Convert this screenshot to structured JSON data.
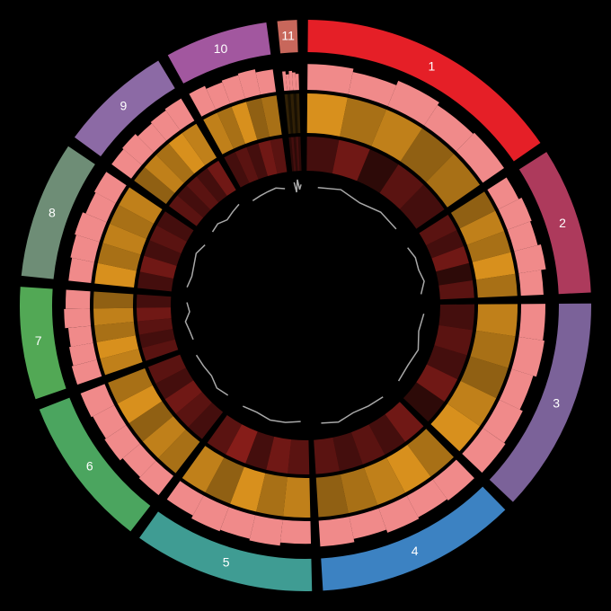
{
  "chart_data": {
    "type": "circos",
    "categories": [
      "1",
      "2",
      "3",
      "4",
      "5",
      "6",
      "7",
      "8",
      "9",
      "10",
      "11"
    ],
    "values": [
      55,
      30,
      44,
      41,
      37,
      31,
      23,
      28,
      23,
      21,
      4
    ],
    "colors": [
      "#e51f27",
      "#ad3a5c",
      "#7b6299",
      "#3c82c2",
      "#3f9c93",
      "#4ba55f",
      "#52a855",
      "#6e8d76",
      "#8c6aa5",
      "#a2579f",
      "#c8675b"
    ],
    "tracks": [
      {
        "type": "histogram",
        "color": "#f08a8a",
        "ylim": [
          0,
          1
        ],
        "values": [
          [
            0.8,
            0.7,
            0.85,
            0.75,
            0.8
          ],
          [
            0.7,
            0.8,
            0.75,
            0.85,
            0.7
          ],
          [
            0.75,
            0.8,
            0.7,
            0.8,
            0.85
          ],
          [
            0.8,
            0.75,
            0.8,
            0.7,
            0.8
          ],
          [
            0.7,
            0.8,
            0.75,
            0.8,
            0.7
          ],
          [
            0.75,
            0.7,
            0.8,
            0.75,
            0.8
          ],
          [
            0.8,
            0.75,
            0.7,
            0.8,
            0.75
          ],
          [
            0.7,
            0.75,
            0.8,
            0.7,
            0.75
          ],
          [
            0.75,
            0.8,
            0.7,
            0.75,
            0.8
          ],
          [
            0.8,
            0.7,
            0.75,
            0.8,
            0.7
          ],
          [
            0.6,
            0.5,
            0.6,
            0.55,
            0.5
          ]
        ]
      },
      {
        "type": "heatmap",
        "color": "#f0a020",
        "ylim": [
          0,
          1
        ],
        "values": [
          [
            0.9,
            0.7,
            0.8,
            0.6,
            0.7
          ],
          [
            0.6,
            0.8,
            0.7,
            0.9,
            0.7
          ],
          [
            0.8,
            0.7,
            0.6,
            0.8,
            0.9
          ],
          [
            0.7,
            0.9,
            0.8,
            0.7,
            0.6
          ],
          [
            0.8,
            0.7,
            0.9,
            0.6,
            0.8
          ],
          [
            0.7,
            0.8,
            0.6,
            0.9,
            0.7
          ],
          [
            0.8,
            0.9,
            0.7,
            0.8,
            0.6
          ],
          [
            0.9,
            0.7,
            0.8,
            0.7,
            0.8
          ],
          [
            0.6,
            0.8,
            0.7,
            0.9,
            0.8
          ],
          [
            0.8,
            0.7,
            0.9,
            0.6,
            0.7
          ],
          [
            0.2,
            0.1,
            0.2,
            0.1,
            0.2
          ]
        ]
      },
      {
        "type": "heatmap",
        "color": "#e0302a",
        "ylim": [
          0,
          1
        ],
        "values": [
          [
            0.3,
            0.5,
            0.2,
            0.4,
            0.3
          ],
          [
            0.4,
            0.3,
            0.5,
            0.2,
            0.4
          ],
          [
            0.3,
            0.4,
            0.3,
            0.5,
            0.2
          ],
          [
            0.5,
            0.3,
            0.4,
            0.3,
            0.4
          ],
          [
            0.4,
            0.5,
            0.3,
            0.6,
            0.4
          ],
          [
            0.3,
            0.4,
            0.5,
            0.3,
            0.4
          ],
          [
            0.4,
            0.3,
            0.4,
            0.5,
            0.3
          ],
          [
            0.3,
            0.5,
            0.3,
            0.4,
            0.3
          ],
          [
            0.4,
            0.3,
            0.4,
            0.3,
            0.5
          ],
          [
            0.3,
            0.4,
            0.3,
            0.5,
            0.4
          ],
          [
            0.2,
            0.3,
            0.2,
            0.3,
            0.2
          ]
        ]
      },
      {
        "type": "line",
        "color": "#a8a8a8",
        "ylim": [
          0,
          1
        ],
        "values": [
          [
            0.5,
            0.6,
            0.4,
            0.55,
            0.5
          ],
          [
            0.45,
            0.55,
            0.5,
            0.6,
            0.4
          ],
          [
            0.5,
            0.4,
            0.6,
            0.5,
            0.55
          ],
          [
            0.55,
            0.5,
            0.45,
            0.6,
            0.5
          ],
          [
            0.4,
            0.5,
            0.55,
            0.45,
            0.5
          ],
          [
            0.5,
            0.6,
            0.45,
            0.5,
            0.55
          ],
          [
            0.45,
            0.5,
            0.6,
            0.4,
            0.5
          ],
          [
            0.55,
            0.45,
            0.5,
            0.6,
            0.45
          ],
          [
            0.5,
            0.55,
            0.4,
            0.5,
            0.6
          ],
          [
            0.45,
            0.5,
            0.55,
            0.6,
            0.5
          ],
          [
            0.7,
            0.3,
            0.8,
            0.4,
            0.6
          ]
        ]
      }
    ]
  }
}
